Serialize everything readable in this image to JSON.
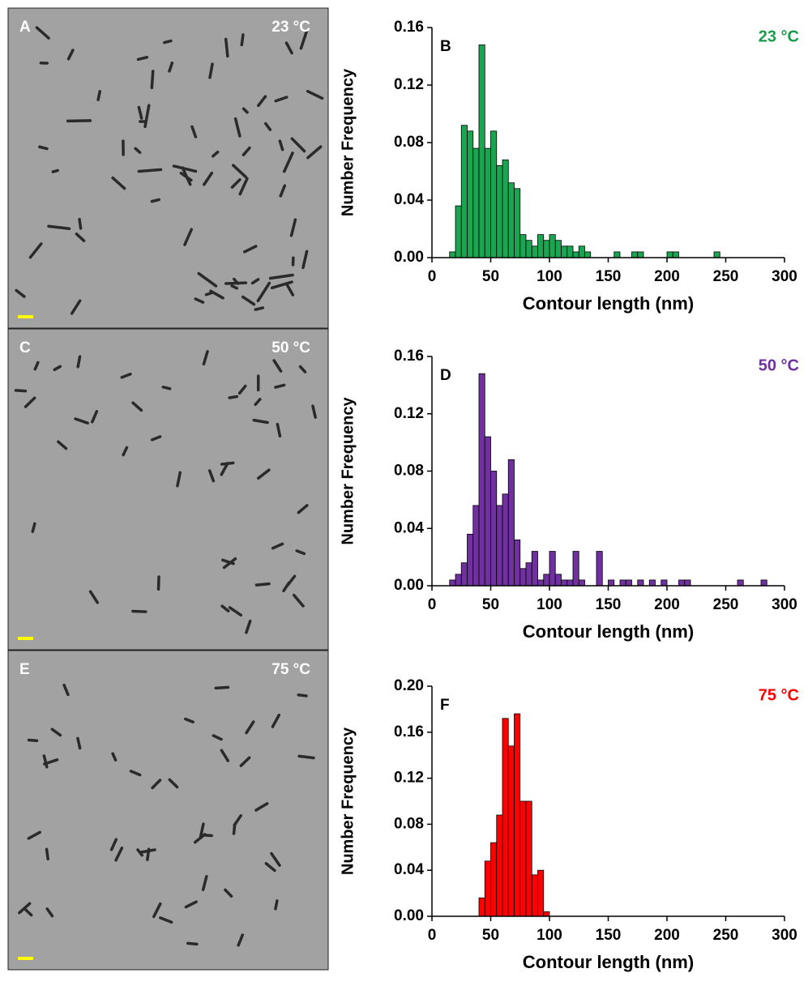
{
  "images": [
    {
      "panel": "A",
      "temperature": "23 °C"
    },
    {
      "panel": "C",
      "temperature": "50 °C"
    },
    {
      "panel": "E",
      "temperature": "75 °C"
    }
  ],
  "chart_data": [
    {
      "type": "histogram",
      "panel": "B",
      "annotation": "23 °C",
      "annotation_color": "#1a9c4a",
      "xlabel": "Contour length (nm)",
      "ylabel": "Number Frequency",
      "color": "#1aa650",
      "bins": [
        15,
        20,
        25,
        30,
        35,
        40,
        45,
        50,
        55,
        60,
        65,
        70,
        75,
        80,
        85,
        90,
        95,
        100,
        105,
        110,
        115,
        120,
        125,
        130,
        135,
        140,
        145,
        150,
        155,
        160,
        165,
        170,
        175,
        180,
        185,
        190,
        195,
        200,
        205,
        210,
        215,
        220,
        225,
        230,
        235,
        240,
        245
      ],
      "values": [
        0.004,
        0.036,
        0.092,
        0.088,
        0.076,
        0.148,
        0.076,
        0.088,
        0.064,
        0.068,
        0.052,
        0.048,
        0.016,
        0.012,
        0.008,
        0.016,
        0.012,
        0.016,
        0.012,
        0.008,
        0.008,
        0.004,
        0.008,
        0.004,
        0,
        0,
        0,
        0,
        0.004,
        0,
        0,
        0.004,
        0.004,
        0,
        0,
        0,
        0,
        0.004,
        0.004,
        0,
        0,
        0,
        0,
        0,
        0,
        0.004
      ],
      "xlim": [
        0,
        300
      ],
      "xticks": [
        0,
        50,
        100,
        150,
        200,
        250,
        300
      ],
      "ylim": [
        0,
        0.16
      ],
      "yticks": [
        {
          "value": 0,
          "label": "0.00"
        },
        {
          "value": 0.04,
          "label": "0.04"
        },
        {
          "value": 0.08,
          "label": "0.08"
        },
        {
          "value": 0.12,
          "label": "0.12"
        },
        {
          "value": 0.16,
          "label": "0.16"
        }
      ]
    },
    {
      "type": "histogram",
      "panel": "D",
      "annotation": "50 °C",
      "annotation_color": "#7030a0",
      "xlabel": "Contour length (nm)",
      "ylabel": "Number Frequency",
      "color": "#7030a0",
      "bins": [
        15,
        20,
        25,
        30,
        35,
        40,
        45,
        50,
        55,
        60,
        65,
        70,
        75,
        80,
        85,
        90,
        95,
        100,
        105,
        110,
        115,
        120,
        125,
        130,
        135,
        140,
        145,
        150,
        155,
        160,
        165,
        170,
        175,
        180,
        185,
        190,
        195,
        200,
        205,
        210,
        215,
        220,
        225,
        230,
        235,
        240,
        245,
        250,
        255,
        260,
        265,
        270,
        275,
        280,
        285
      ],
      "values": [
        0.004,
        0.008,
        0.016,
        0.036,
        0.056,
        0.148,
        0.104,
        0.08,
        0.056,
        0.064,
        0.088,
        0.032,
        0.012,
        0.016,
        0.024,
        0.004,
        0.008,
        0.024,
        0.008,
        0.004,
        0.004,
        0.024,
        0.004,
        0,
        0,
        0.024,
        0,
        0.004,
        0,
        0.004,
        0.004,
        0,
        0.004,
        0,
        0.004,
        0,
        0.004,
        0,
        0,
        0.004,
        0.004,
        0,
        0,
        0,
        0,
        0,
        0,
        0,
        0,
        0.004,
        0,
        0,
        0,
        0.004
      ],
      "xlim": [
        0,
        300
      ],
      "xticks": [
        0,
        50,
        100,
        150,
        200,
        250,
        300
      ],
      "ylim": [
        0,
        0.16
      ],
      "yticks": [
        {
          "value": 0,
          "label": "0.00"
        },
        {
          "value": 0.04,
          "label": "0.04"
        },
        {
          "value": 0.08,
          "label": "0.08"
        },
        {
          "value": 0.12,
          "label": "0.12"
        },
        {
          "value": 0.16,
          "label": "0.16"
        }
      ]
    },
    {
      "type": "histogram",
      "panel": "F",
      "annotation": "75 °C",
      "annotation_color": "#ff0000",
      "xlabel": "Contour length (nm)",
      "ylabel": "Number Frequency",
      "color": "#ff0000",
      "bins": [
        40,
        45,
        50,
        55,
        60,
        65,
        70,
        75,
        80,
        85,
        90,
        95,
        100
      ],
      "values": [
        0.016,
        0.048,
        0.064,
        0.088,
        0.172,
        0.148,
        0.176,
        0.1,
        0.1,
        0.036,
        0.04,
        0.004
      ],
      "xlim": [
        0,
        300
      ],
      "xticks": [
        0,
        50,
        100,
        150,
        200,
        250,
        300
      ],
      "ylim": [
        0,
        0.2
      ],
      "yticks": [
        {
          "value": 0,
          "label": "0.00"
        },
        {
          "value": 0.04,
          "label": "0.04"
        },
        {
          "value": 0.08,
          "label": "0.08"
        },
        {
          "value": 0.12,
          "label": "0.12"
        },
        {
          "value": 0.16,
          "label": "0.16"
        },
        {
          "value": 0.2,
          "label": "0.20"
        }
      ]
    }
  ]
}
